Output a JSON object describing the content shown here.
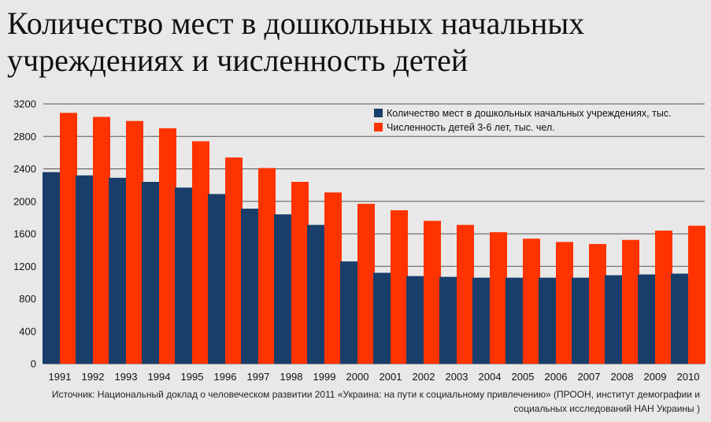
{
  "title": "Количество мест в дошкольных начальных учреждениях и численность детей",
  "source": "Источник: Национальный доклад о человеческом развитии 2011 «Украина: на пути к социальному привлечению» (ПРООН, институт демографии и социальных исследований НАН Украины )",
  "colors": {
    "places": "#1a3e6a",
    "children": "#ff3300",
    "grid": "#555555"
  },
  "chart_data": {
    "type": "bar",
    "title": "Количество мест в дошкольных начальных учреждениях и численность детей",
    "xlabel": "",
    "ylabel": "",
    "ylim": [
      0,
      3200
    ],
    "yticks": [
      0,
      400,
      800,
      1200,
      1600,
      2000,
      2400,
      2800,
      3200
    ],
    "grid": true,
    "legend": "top-right",
    "categories": [
      "1991",
      "1992",
      "1993",
      "1994",
      "1995",
      "1996",
      "1997",
      "1998",
      "1999",
      "2000",
      "2001",
      "2002",
      "2003",
      "2004",
      "2005",
      "2006",
      "2007",
      "2008",
      "2009",
      "2010"
    ],
    "series": [
      {
        "name": "Численность детей 3-6 лет, тыс. чел.",
        "color": "#ff3300",
        "values": [
          3090,
          3040,
          2990,
          2900,
          2740,
          2540,
          2410,
          2240,
          2110,
          1970,
          1890,
          1760,
          1710,
          1620,
          1540,
          1500,
          1475,
          1525,
          1640,
          1700
        ]
      },
      {
        "name": "Количество мест в дошкольных начальных учреждениях, тыс.",
        "color": "#1a3e6a",
        "values": [
          2360,
          2320,
          2290,
          2240,
          2170,
          2090,
          1910,
          1840,
          1710,
          1260,
          1120,
          1080,
          1070,
          1060,
          1060,
          1060,
          1060,
          1090,
          1100,
          1110
        ]
      }
    ]
  }
}
